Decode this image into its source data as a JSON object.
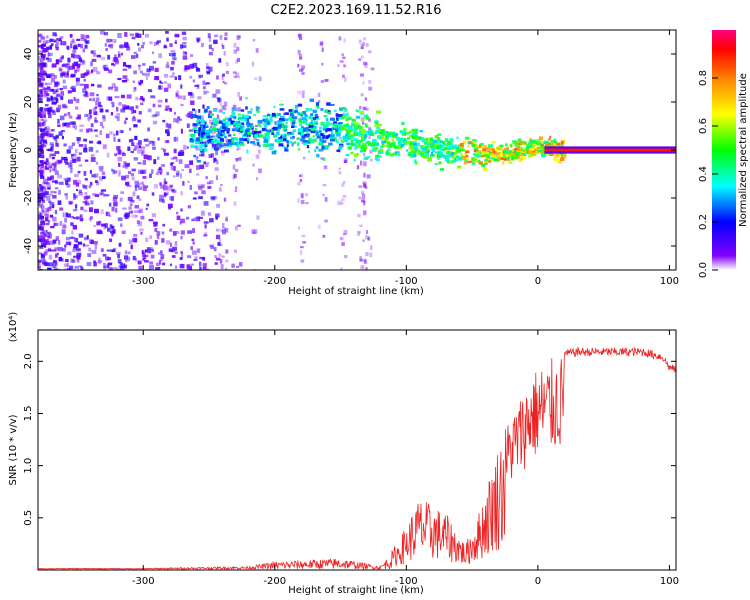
{
  "title": "C2E2.2023.169.11.52.R16",
  "chart_data": [
    {
      "type": "heatmap",
      "xlabel": "Height of straight line (km)",
      "ylabel": "Frequency (Hz)",
      "xlim": [
        -380,
        105
      ],
      "ylim": [
        -50,
        50
      ],
      "x_ticks": [
        -300,
        -200,
        -100,
        0,
        100
      ],
      "y_ticks": [
        -40,
        -20,
        0,
        20,
        40
      ],
      "colorbar": {
        "label": "Normalized spectral amplitude",
        "range": [
          0.0,
          1.0
        ],
        "ticks": [
          "0.0",
          "0.2",
          "0.4",
          "0.6",
          "0.8"
        ],
        "colors": [
          "#ffffff",
          "#8000ff",
          "#0000ff",
          "#00ffff",
          "#00ff00",
          "#ffff00",
          "#ff8000",
          "#ff0000",
          "#ff0080"
        ]
      },
      "signal_ridge": {
        "x": [
          -260,
          -230,
          -200,
          -180,
          -160,
          -140,
          -120,
          -100,
          -80,
          -60,
          -50,
          -40,
          -30,
          -20,
          -10,
          0,
          20,
          50,
          100
        ],
        "y": [
          8,
          9,
          9,
          10,
          9,
          7,
          5,
          3,
          1,
          -1,
          0,
          -2,
          -1,
          0,
          1,
          2,
          0,
          0,
          0
        ]
      }
    },
    {
      "type": "line",
      "xlabel": "Height of straight line (km)",
      "ylabel": "SNR (10 * v/v)",
      "y_multiplier": "(x10⁴)",
      "xlim": [
        -380,
        105
      ],
      "ylim": [
        0,
        2.3
      ],
      "x_ticks": [
        -300,
        -200,
        -100,
        0,
        100
      ],
      "y_ticks": [
        "0.5",
        "1.0",
        "1.5",
        "2.0"
      ],
      "color": "#ee2222",
      "envelope": {
        "x": [
          -380,
          -300,
          -220,
          -200,
          -150,
          -120,
          -105,
          -90,
          -70,
          -55,
          -45,
          -35,
          -28,
          -20,
          -12,
          -5,
          5,
          20,
          30,
          50,
          80,
          95,
          100,
          105
        ],
        "y": [
          0.01,
          0.01,
          0.03,
          0.08,
          0.12,
          0.03,
          0.3,
          0.7,
          0.55,
          0.25,
          0.55,
          1.0,
          1.3,
          1.5,
          1.7,
          1.9,
          2.0,
          2.08,
          2.1,
          2.1,
          2.1,
          2.05,
          1.95,
          1.93
        ]
      }
    }
  ]
}
